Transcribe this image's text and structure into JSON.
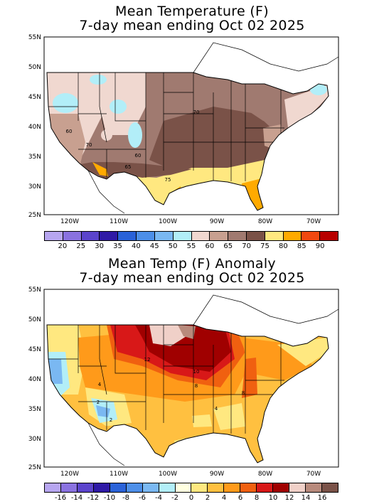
{
  "panels": [
    {
      "title_line1": "Mean Temperature (F)",
      "title_line2": "7-day mean ending Oct 02 2025",
      "lat_labels": [
        "55N",
        "50N",
        "45N",
        "40N",
        "35N",
        "30N",
        "25N"
      ],
      "lon_labels": [
        "120W",
        "110W",
        "100W",
        "90W",
        "80W",
        "70W"
      ],
      "contour_labels": [
        "70",
        "60",
        "70",
        "60",
        "65",
        "75"
      ],
      "colorbar": {
        "colors": [
          "#b7a6f0",
          "#8a72e0",
          "#5b44cc",
          "#2f1aa6",
          "#2a62d8",
          "#4d8fe8",
          "#7ab8f2",
          "#b2eef8",
          "#f0d8d0",
          "#c8a090",
          "#a07a70",
          "#7a5248",
          "#ffe880",
          "#ffaa00",
          "#f04810",
          "#b80000"
        ],
        "labels": [
          "20",
          "25",
          "30",
          "35",
          "40",
          "45",
          "50",
          "55",
          "60",
          "65",
          "70",
          "75",
          "80",
          "85",
          "90"
        ]
      }
    },
    {
      "title_line1": "Mean Temp (F) Anomaly",
      "title_line2": "7-day mean ending Oct 02 2025",
      "lat_labels": [
        "55N",
        "50N",
        "45N",
        "40N",
        "35N",
        "30N",
        "25N"
      ],
      "lon_labels": [
        "120W",
        "110W",
        "100W",
        "90W",
        "80W",
        "70W"
      ],
      "contour_labels": [
        "12",
        "10",
        "8",
        "8",
        "4",
        "2",
        "2",
        "4"
      ],
      "colorbar": {
        "colors": [
          "#b7a6f0",
          "#8a72e0",
          "#5b44cc",
          "#2f1aa6",
          "#2a62d8",
          "#4d8fe8",
          "#7ab8f2",
          "#b2eef8",
          "#ffffe0",
          "#ffe880",
          "#ffc040",
          "#ff9a1a",
          "#f06010",
          "#d81818",
          "#a00000",
          "#f0d0c8",
          "#b88a7c",
          "#7a5248"
        ],
        "labels": [
          "-16",
          "-14",
          "-12",
          "-10",
          "-8",
          "-6",
          "-4",
          "-2",
          "0",
          "2",
          "4",
          "6",
          "8",
          "10",
          "12",
          "14",
          "16"
        ]
      }
    }
  ]
}
